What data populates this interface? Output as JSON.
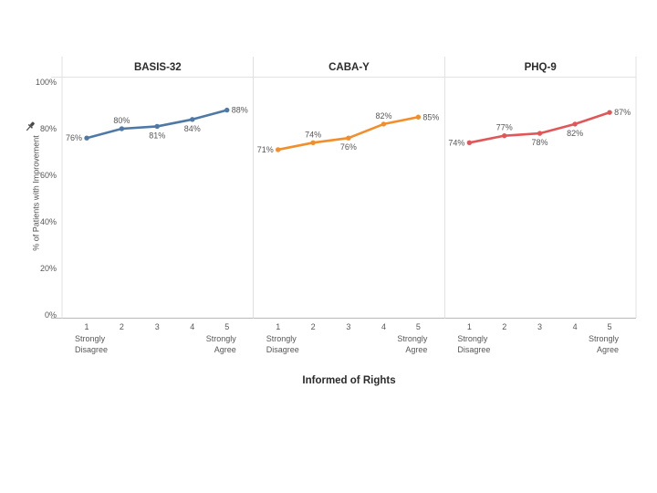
{
  "chart_data": {
    "type": "line",
    "title": "",
    "xlabel": "Informed of Rights",
    "ylabel": "% of Patients with Improvement",
    "x": [
      1,
      2,
      3,
      4,
      5
    ],
    "x_end_labels": {
      "low": [
        "Strongly",
        "Disagree"
      ],
      "high": [
        "Strongly",
        "Agree"
      ]
    },
    "y_ticks": [
      "0%",
      "20%",
      "40%",
      "60%",
      "80%",
      "100%"
    ],
    "ylim": [
      0,
      100
    ],
    "grid": false,
    "legend": "none",
    "panels": [
      {
        "title": "BASIS-32",
        "color": "#4e79a7",
        "values": [
          76,
          80,
          81,
          84,
          88
        ],
        "labels": [
          "76%",
          "80%",
          "81%",
          "84%",
          "88%"
        ],
        "label_placements": [
          "left",
          "above",
          "below",
          "below",
          "right"
        ]
      },
      {
        "title": "CABA-Y",
        "color": "#f28e2b",
        "values": [
          71,
          74,
          76,
          82,
          85
        ],
        "labels": [
          "71%",
          "74%",
          "76%",
          "82%",
          "85%"
        ],
        "label_placements": [
          "left",
          "above",
          "below",
          "above",
          "right"
        ]
      },
      {
        "title": "PHQ-9",
        "color": "#e15759",
        "values": [
          74,
          77,
          78,
          82,
          87
        ],
        "labels": [
          "74%",
          "77%",
          "78%",
          "82%",
          "87%"
        ],
        "label_placements": [
          "left",
          "above",
          "below",
          "below",
          "right"
        ]
      }
    ]
  },
  "icons": {
    "y_axis_pin": "pin-icon"
  },
  "colors": {
    "series_blue": "#4e79a7",
    "series_orange": "#f28e2b",
    "series_red": "#e15759",
    "axis_line": "#b9b9b9",
    "panel_rule": "#e2e2e2",
    "tick_text": "#575757",
    "title_text": "#2b2b2b",
    "background": "#ffffff"
  }
}
